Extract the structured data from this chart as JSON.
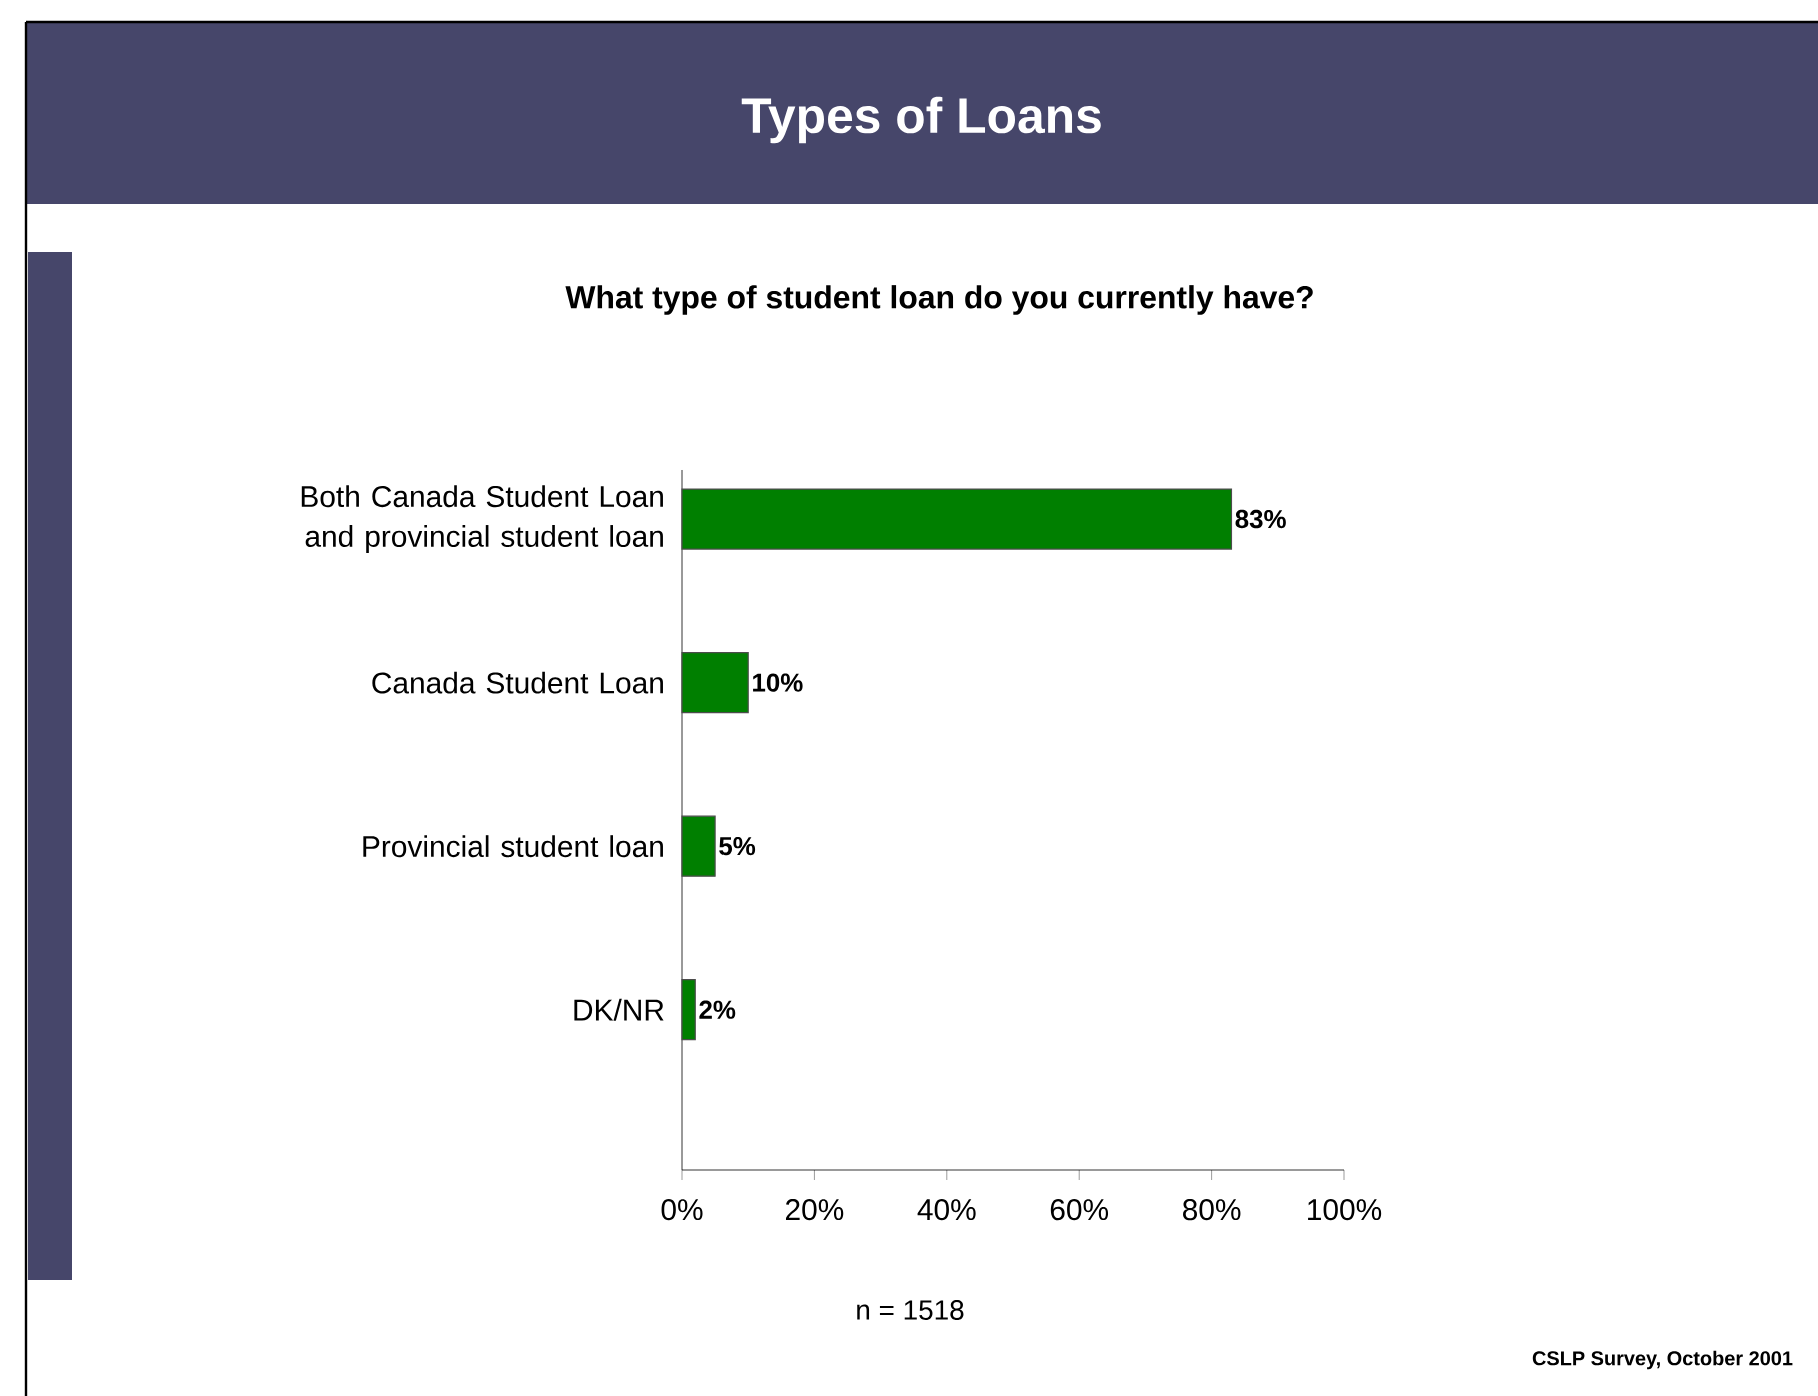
{
  "chart_data": {
    "type": "bar",
    "orientation": "horizontal",
    "title": "Types of Loans",
    "subtitle": "What type of student loan do you currently have?",
    "categories": [
      "Both Canada Student Loan and provincial student loan",
      "Canada Student Loan",
      "Provincial student loan",
      "DK/NR"
    ],
    "values": [
      83,
      10,
      5,
      2
    ],
    "value_labels": [
      "83%",
      "10%",
      "5%",
      "2%"
    ],
    "color": "#007f00",
    "xlim": [
      0,
      100
    ],
    "xticks": [
      {
        "value": 0,
        "label": "0%"
      },
      {
        "value": 20,
        "label": "20%"
      },
      {
        "value": 40,
        "label": "40%"
      },
      {
        "value": 60,
        "label": "60%"
      },
      {
        "value": 80,
        "label": "80%"
      },
      {
        "value": 100,
        "label": "100%"
      }
    ],
    "grid": false,
    "annotations": [
      "n = 1518",
      "CSLP Survey, October 2001"
    ]
  }
}
